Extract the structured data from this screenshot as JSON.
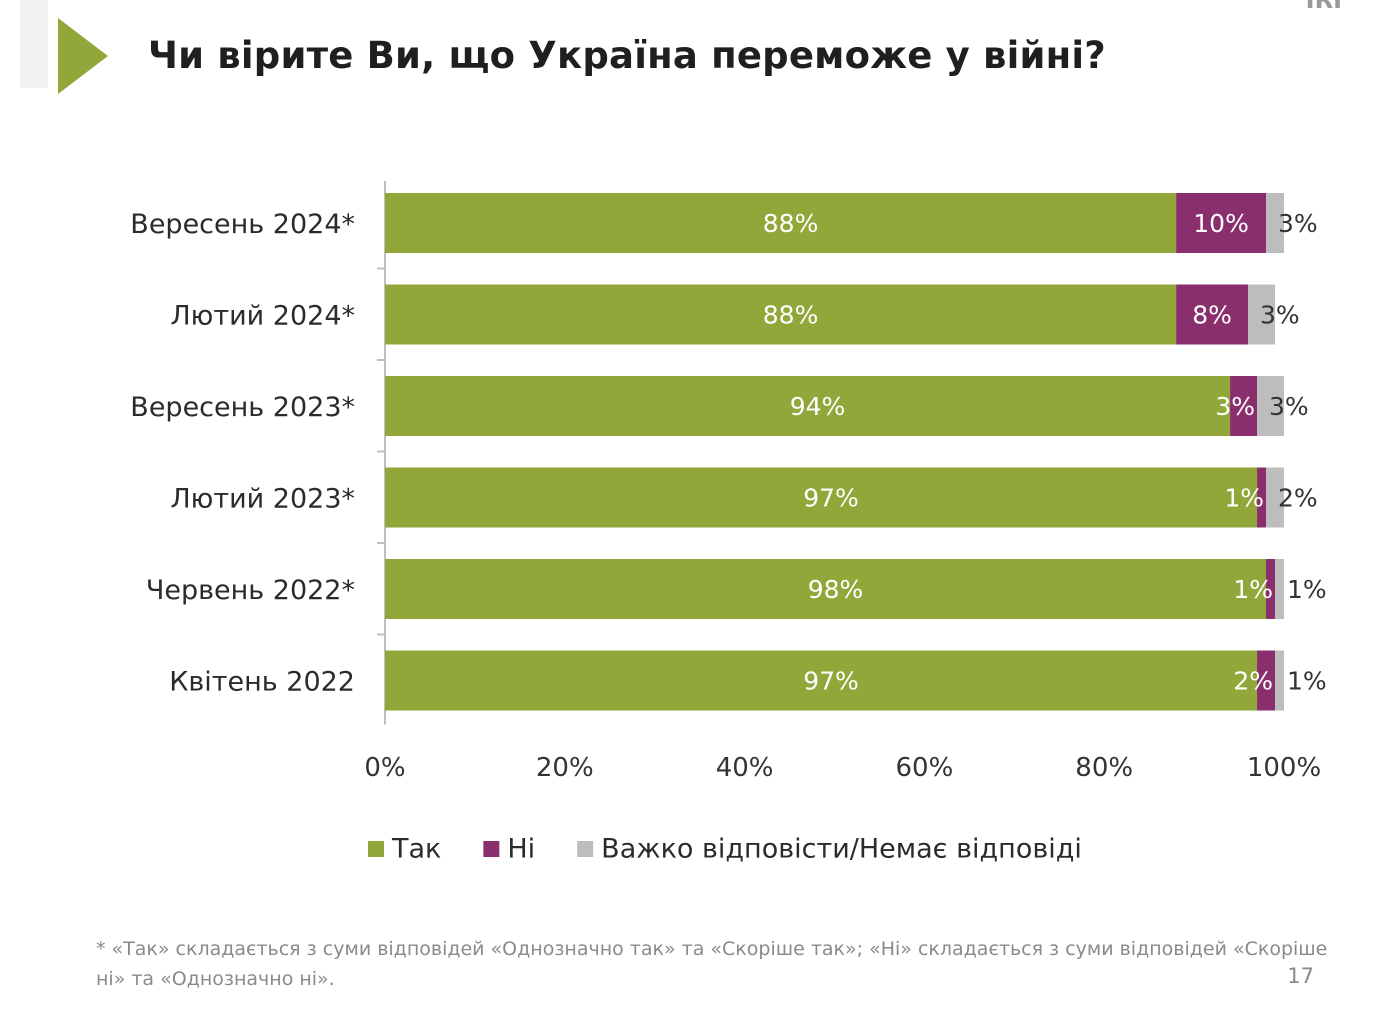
{
  "header": {
    "title": "Чи вірите Ви, що Україна переможе у війні?",
    "logo_text": "IRI"
  },
  "chart_data": {
    "type": "bar",
    "orientation": "horizontal",
    "stacked": true,
    "title": "Чи вірите Ви, що Україна переможе у війні?",
    "categories": [
      "Вересень 2024*",
      "Лютий 2024*",
      "Вересень 2023*",
      "Лютий 2023*",
      "Червень 2022*",
      "Квітень 2022"
    ],
    "series": [
      {
        "name": "Так",
        "color": "#92a73a",
        "values": [
          88,
          88,
          94,
          97,
          98,
          97
        ]
      },
      {
        "name": "Ні",
        "color": "#8a2f6e",
        "values": [
          10,
          8,
          3,
          1,
          1,
          2
        ]
      },
      {
        "name": "Важко відповісти/Немає відповіді",
        "color": "#bdbdbd",
        "values": [
          3,
          3,
          3,
          2,
          1,
          1
        ]
      }
    ],
    "xlim": [
      0,
      100
    ],
    "x_ticks": [
      "0%",
      "20%",
      "40%",
      "60%",
      "80%",
      "100%"
    ],
    "legend_position": "bottom",
    "grid": false
  },
  "footer": {
    "footnote": "* «Так» складається з суми відповідей «Однозначно так» та «Скоріше так»; «Ні» складається з суми відповідей «Скоріше ні» та «Однозначно ні».",
    "page_number": "17"
  }
}
